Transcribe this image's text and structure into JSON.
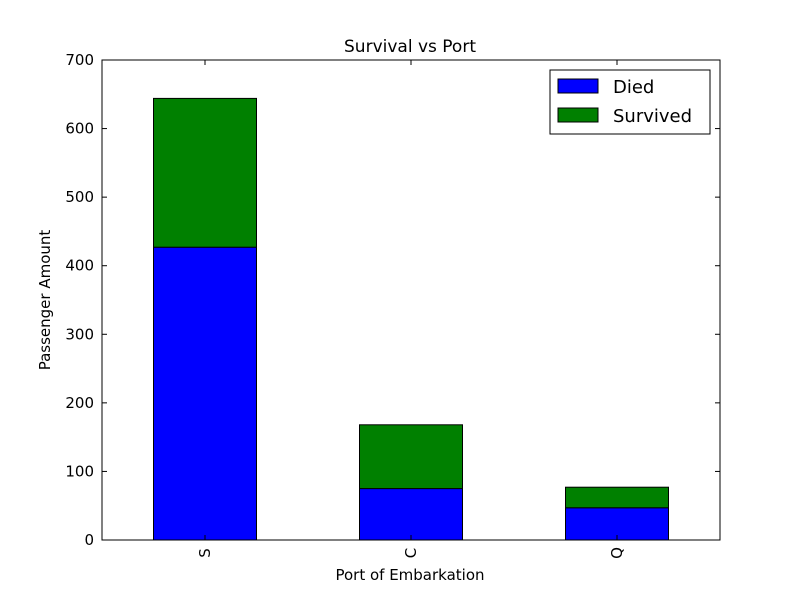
{
  "chart_data": {
    "type": "bar",
    "stacked": true,
    "title": "Survival vs Port",
    "xlabel": "Port of Embarkation",
    "ylabel": "Passenger Amount",
    "categories": [
      "S",
      "C",
      "Q"
    ],
    "series": [
      {
        "name": "Died",
        "color": "#0000ff",
        "values": [
          427,
          75,
          47
        ]
      },
      {
        "name": "Survived",
        "color": "#008000",
        "values": [
          217,
          93,
          30
        ]
      }
    ],
    "ylim": [
      0,
      700
    ],
    "yticks": [
      0,
      100,
      200,
      300,
      400,
      500,
      600,
      700
    ],
    "legend": "top-right",
    "grid": false
  }
}
